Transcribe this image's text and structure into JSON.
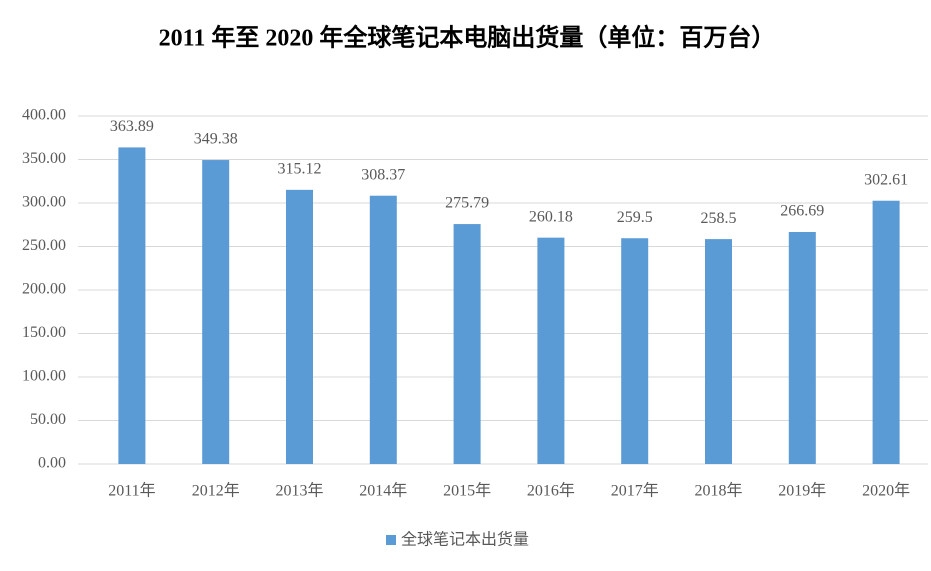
{
  "chart_data": {
    "type": "bar",
    "title": "2011 年至 2020 年全球笔记本电脑出货量（单位：百万台）",
    "categories": [
      "2011年",
      "2012年",
      "2013年",
      "2014年",
      "2015年",
      "2016年",
      "2017年",
      "2018年",
      "2019年",
      "2020年"
    ],
    "series": [
      {
        "name": "全球笔记本出货量",
        "color": "#5b9bd5",
        "values": [
          363.89,
          349.38,
          315.12,
          308.37,
          275.79,
          260.18,
          259.5,
          258.5,
          266.69,
          302.61
        ]
      }
    ],
    "ylim": [
      0,
      400
    ],
    "yticks": [
      {
        "value": 0,
        "label": "0.00"
      },
      {
        "value": 50,
        "label": "50.00"
      },
      {
        "value": 100,
        "label": "100.00"
      },
      {
        "value": 150,
        "label": "150.00"
      },
      {
        "value": 200,
        "label": "200.00"
      },
      {
        "value": 250,
        "label": "250.00"
      },
      {
        "value": 300,
        "label": "300.00"
      },
      {
        "value": 350,
        "label": "350.00"
      },
      {
        "value": 400,
        "label": "400.00"
      }
    ],
    "grid": true,
    "legend": "bottom"
  }
}
